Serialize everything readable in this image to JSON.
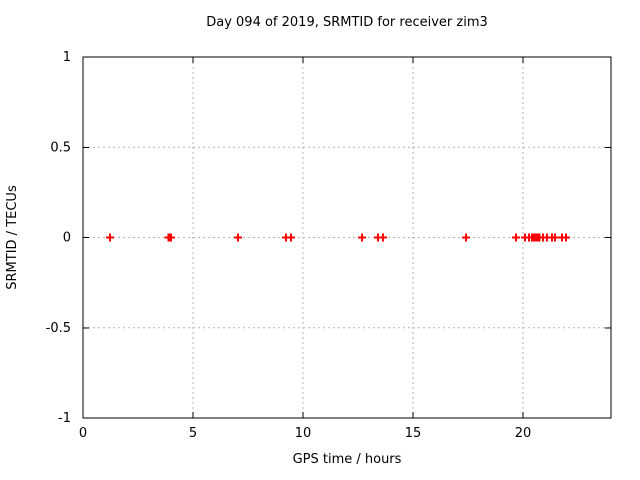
{
  "chart_data": {
    "type": "scatter",
    "title": "Day 094 of 2019, SRMTID for receiver zim3",
    "xlabel": "GPS time / hours",
    "ylabel": "SRMTID / TECUs",
    "xlim": [
      0,
      24
    ],
    "ylim": [
      -1,
      1
    ],
    "xticks": {
      "values": [
        0,
        5,
        10,
        15,
        20
      ],
      "labels": [
        "0",
        "5",
        "10",
        "15",
        "20"
      ]
    },
    "yticks": {
      "values": [
        1,
        0.5,
        0,
        -0.5,
        -1
      ],
      "labels": [
        "1",
        "0.5",
        "0",
        "-0.5",
        "-1"
      ]
    },
    "grid": true,
    "legend": "none",
    "marker": {
      "shape": "plus",
      "color": "#ff0000"
    },
    "colors": {
      "grid": "#b3b3b3",
      "axis": "#000000",
      "text": "#000000",
      "background": "#ffffff"
    },
    "series": [
      {
        "name": "SRMTID",
        "x": [
          1.23,
          3.88,
          3.91,
          3.94,
          3.97,
          4.0,
          7.05,
          9.23,
          9.45,
          12.68,
          13.41,
          13.64,
          17.41,
          19.68,
          20.09,
          20.27,
          20.4,
          20.45,
          20.5,
          20.55,
          20.6,
          20.65,
          20.7,
          20.75,
          20.91,
          21.09,
          21.32,
          21.45,
          21.77,
          21.95
        ],
        "y": [
          0,
          0,
          0,
          0,
          0,
          0,
          0,
          0,
          0,
          0,
          0,
          0,
          0,
          0,
          0,
          0,
          0,
          0,
          0,
          0,
          0,
          0,
          0,
          0,
          0,
          0,
          0,
          0,
          0,
          0
        ]
      }
    ]
  }
}
